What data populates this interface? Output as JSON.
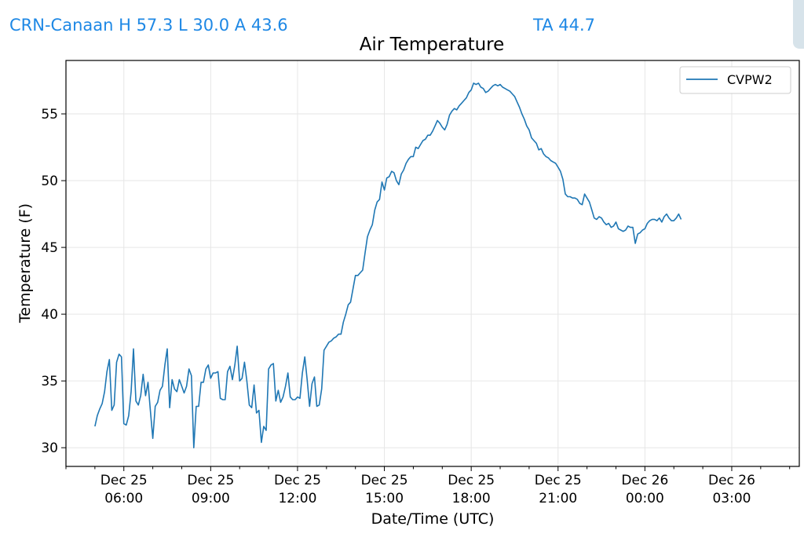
{
  "header": {
    "station_label": "CRN-Canaan H 57.3 L 30.0 A 43.6",
    "ta_label": "TA 44.7"
  },
  "colors": {
    "header_text": "#1e88e5",
    "series_line": "#1f77b4",
    "grid": "#e6e6e6"
  },
  "chart_data": {
    "type": "line",
    "title": "Air Temperature",
    "xlabel": "Date/Time (UTC)",
    "ylabel": "Temperature (F)",
    "ylim": [
      28.6,
      59.0
    ],
    "xlim": [
      "2023-12-25 04:00",
      "2023-12-26 05:20"
    ],
    "grid": true,
    "legend_position": "top-right",
    "x_ticks": [
      {
        "date": "Dec 25",
        "time": "06:00"
      },
      {
        "date": "Dec 25",
        "time": "09:00"
      },
      {
        "date": "Dec 25",
        "time": "12:00"
      },
      {
        "date": "Dec 25",
        "time": "15:00"
      },
      {
        "date": "Dec 25",
        "time": "18:00"
      },
      {
        "date": "Dec 25",
        "time": "21:00"
      },
      {
        "date": "Dec 26",
        "time": "00:00"
      },
      {
        "date": "Dec 26",
        "time": "03:00"
      }
    ],
    "y_ticks": [
      "30",
      "35",
      "40",
      "45",
      "50",
      "55"
    ],
    "series": [
      {
        "name": "CVPW2",
        "color": "#1f77b4",
        "x_start": "2023-12-25 05:00",
        "step_minutes": 5,
        "values": [
          31.6,
          32.4,
          32.9,
          33.3,
          34.2,
          35.7,
          36.6,
          32.8,
          33.2,
          36.4,
          37.0,
          36.8,
          31.8,
          31.7,
          32.4,
          34.2,
          37.4,
          33.5,
          33.2,
          33.9,
          35.5,
          33.9,
          34.9,
          32.8,
          30.7,
          33.1,
          33.4,
          34.3,
          34.6,
          36.2,
          37.4,
          33.0,
          35.1,
          34.4,
          34.2,
          35.1,
          34.6,
          34.1,
          34.6,
          35.9,
          35.4,
          30.0,
          33.1,
          33.1,
          34.9,
          34.9,
          35.9,
          36.2,
          35.2,
          35.6,
          35.6,
          35.7,
          33.7,
          33.6,
          33.6,
          35.7,
          36.1,
          35.1,
          36.2,
          37.6,
          35.0,
          35.2,
          36.4,
          35.0,
          33.2,
          33.0,
          34.7,
          32.6,
          32.8,
          30.4,
          31.6,
          31.3,
          35.9,
          36.2,
          36.3,
          33.5,
          34.3,
          33.4,
          33.8,
          34.6,
          35.6,
          33.8,
          33.6,
          33.6,
          33.8,
          33.7,
          35.6,
          36.8,
          35.1,
          33.1,
          34.8,
          35.3,
          33.1,
          33.2,
          34.4,
          37.3,
          37.6,
          37.9,
          38.0,
          38.2,
          38.3,
          38.5,
          38.5,
          39.4,
          40.0,
          40.7,
          40.9,
          41.9,
          42.9,
          42.9,
          43.1,
          43.3,
          44.6,
          45.8,
          46.3,
          46.7,
          47.8,
          48.4,
          48.6,
          49.9,
          49.3,
          50.2,
          50.3,
          50.7,
          50.6,
          50.0,
          49.7,
          50.5,
          50.8,
          51.3,
          51.6,
          51.8,
          51.8,
          52.5,
          52.4,
          52.7,
          53.0,
          53.1,
          53.4,
          53.4,
          53.7,
          54.1,
          54.5,
          54.3,
          54.0,
          53.8,
          54.2,
          54.9,
          55.2,
          55.4,
          55.3,
          55.6,
          55.8,
          56.0,
          56.2,
          56.6,
          56.8,
          57.3,
          57.2,
          57.3,
          57.0,
          56.9,
          56.6,
          56.7,
          56.9,
          57.1,
          57.2,
          57.1,
          57.2,
          57.0,
          56.9,
          56.8,
          56.7,
          56.5,
          56.3,
          55.9,
          55.5,
          55.0,
          54.6,
          54.1,
          53.8,
          53.2,
          53.0,
          52.8,
          52.3,
          52.4,
          52.0,
          51.8,
          51.7,
          51.5,
          51.4,
          51.3,
          51.0,
          50.7,
          50.1,
          49.0,
          48.8,
          48.8,
          48.7,
          48.7,
          48.6,
          48.3,
          48.2,
          49.0,
          48.7,
          48.4,
          47.8,
          47.2,
          47.1,
          47.3,
          47.2,
          46.9,
          46.7,
          46.8,
          46.5,
          46.6,
          46.9,
          46.4,
          46.3,
          46.2,
          46.3,
          46.6,
          46.5,
          46.5,
          45.3,
          46.0,
          46.1,
          46.3,
          46.4,
          46.8,
          47.0,
          47.1,
          47.1,
          47.0,
          47.2,
          46.9,
          47.3,
          47.5,
          47.2,
          47.0,
          47.0,
          47.2,
          47.5,
          47.1
        ]
      }
    ]
  }
}
